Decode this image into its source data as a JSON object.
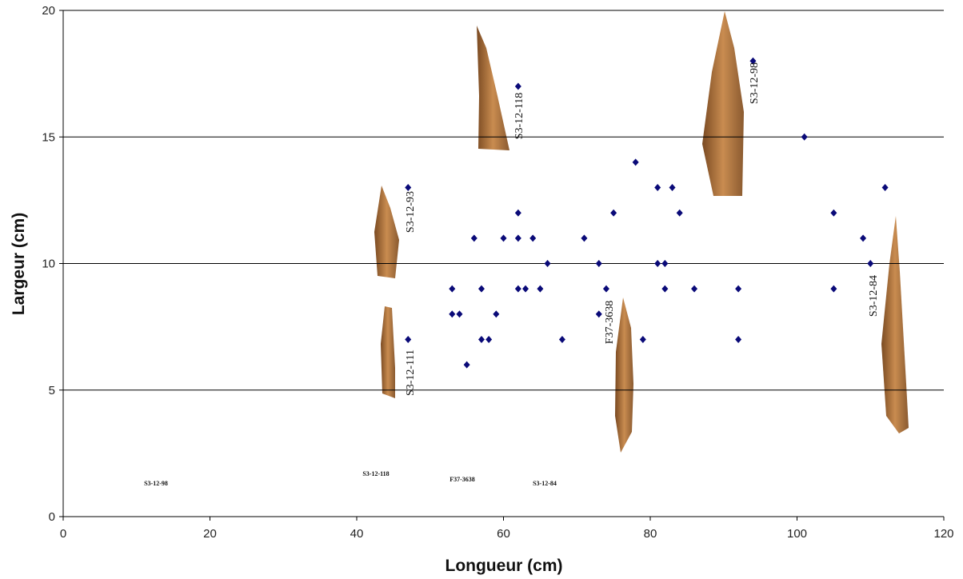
{
  "chart_data": {
    "type": "scatter",
    "x_label": "Longueur (cm)",
    "y_label": "Largeur (cm)",
    "xlim": [
      0,
      120
    ],
    "xticks": [
      0,
      20,
      40,
      60,
      80,
      100,
      120
    ],
    "ylim": [
      0,
      20
    ],
    "yticks": [
      0,
      5,
      10,
      15,
      20
    ],
    "grid": true,
    "series": [
      {
        "color": "#0a0a78",
        "x": [
          47,
          47,
          62,
          62,
          62,
          62,
          56,
          60,
          64,
          66,
          71,
          73,
          53,
          57,
          63,
          65,
          53,
          54,
          59,
          57,
          58,
          55,
          68,
          73,
          74,
          75,
          78,
          79,
          81,
          83,
          84,
          81,
          82,
          82,
          86,
          92,
          92,
          94,
          101,
          105,
          105,
          109,
          110,
          112
        ],
        "values": [
          13,
          7,
          17,
          12,
          11,
          9,
          11,
          11,
          11,
          10,
          11,
          10,
          9,
          9,
          9,
          9,
          8,
          8,
          8,
          7,
          7,
          6,
          7,
          8,
          9,
          12,
          14,
          7,
          13,
          13,
          12,
          10,
          10,
          9,
          9,
          9,
          7,
          18,
          15,
          12,
          9,
          11,
          10,
          13
        ]
      }
    ],
    "annotations": [
      "S3-12-118",
      "S3-12-98",
      "S3-12-93",
      "S3-12-111",
      "F37-3638",
      "S3-12-84"
    ],
    "footnotes": [
      "S3-12-98",
      "S3-12-118",
      "F37-3638",
      "S3-12-84"
    ]
  }
}
